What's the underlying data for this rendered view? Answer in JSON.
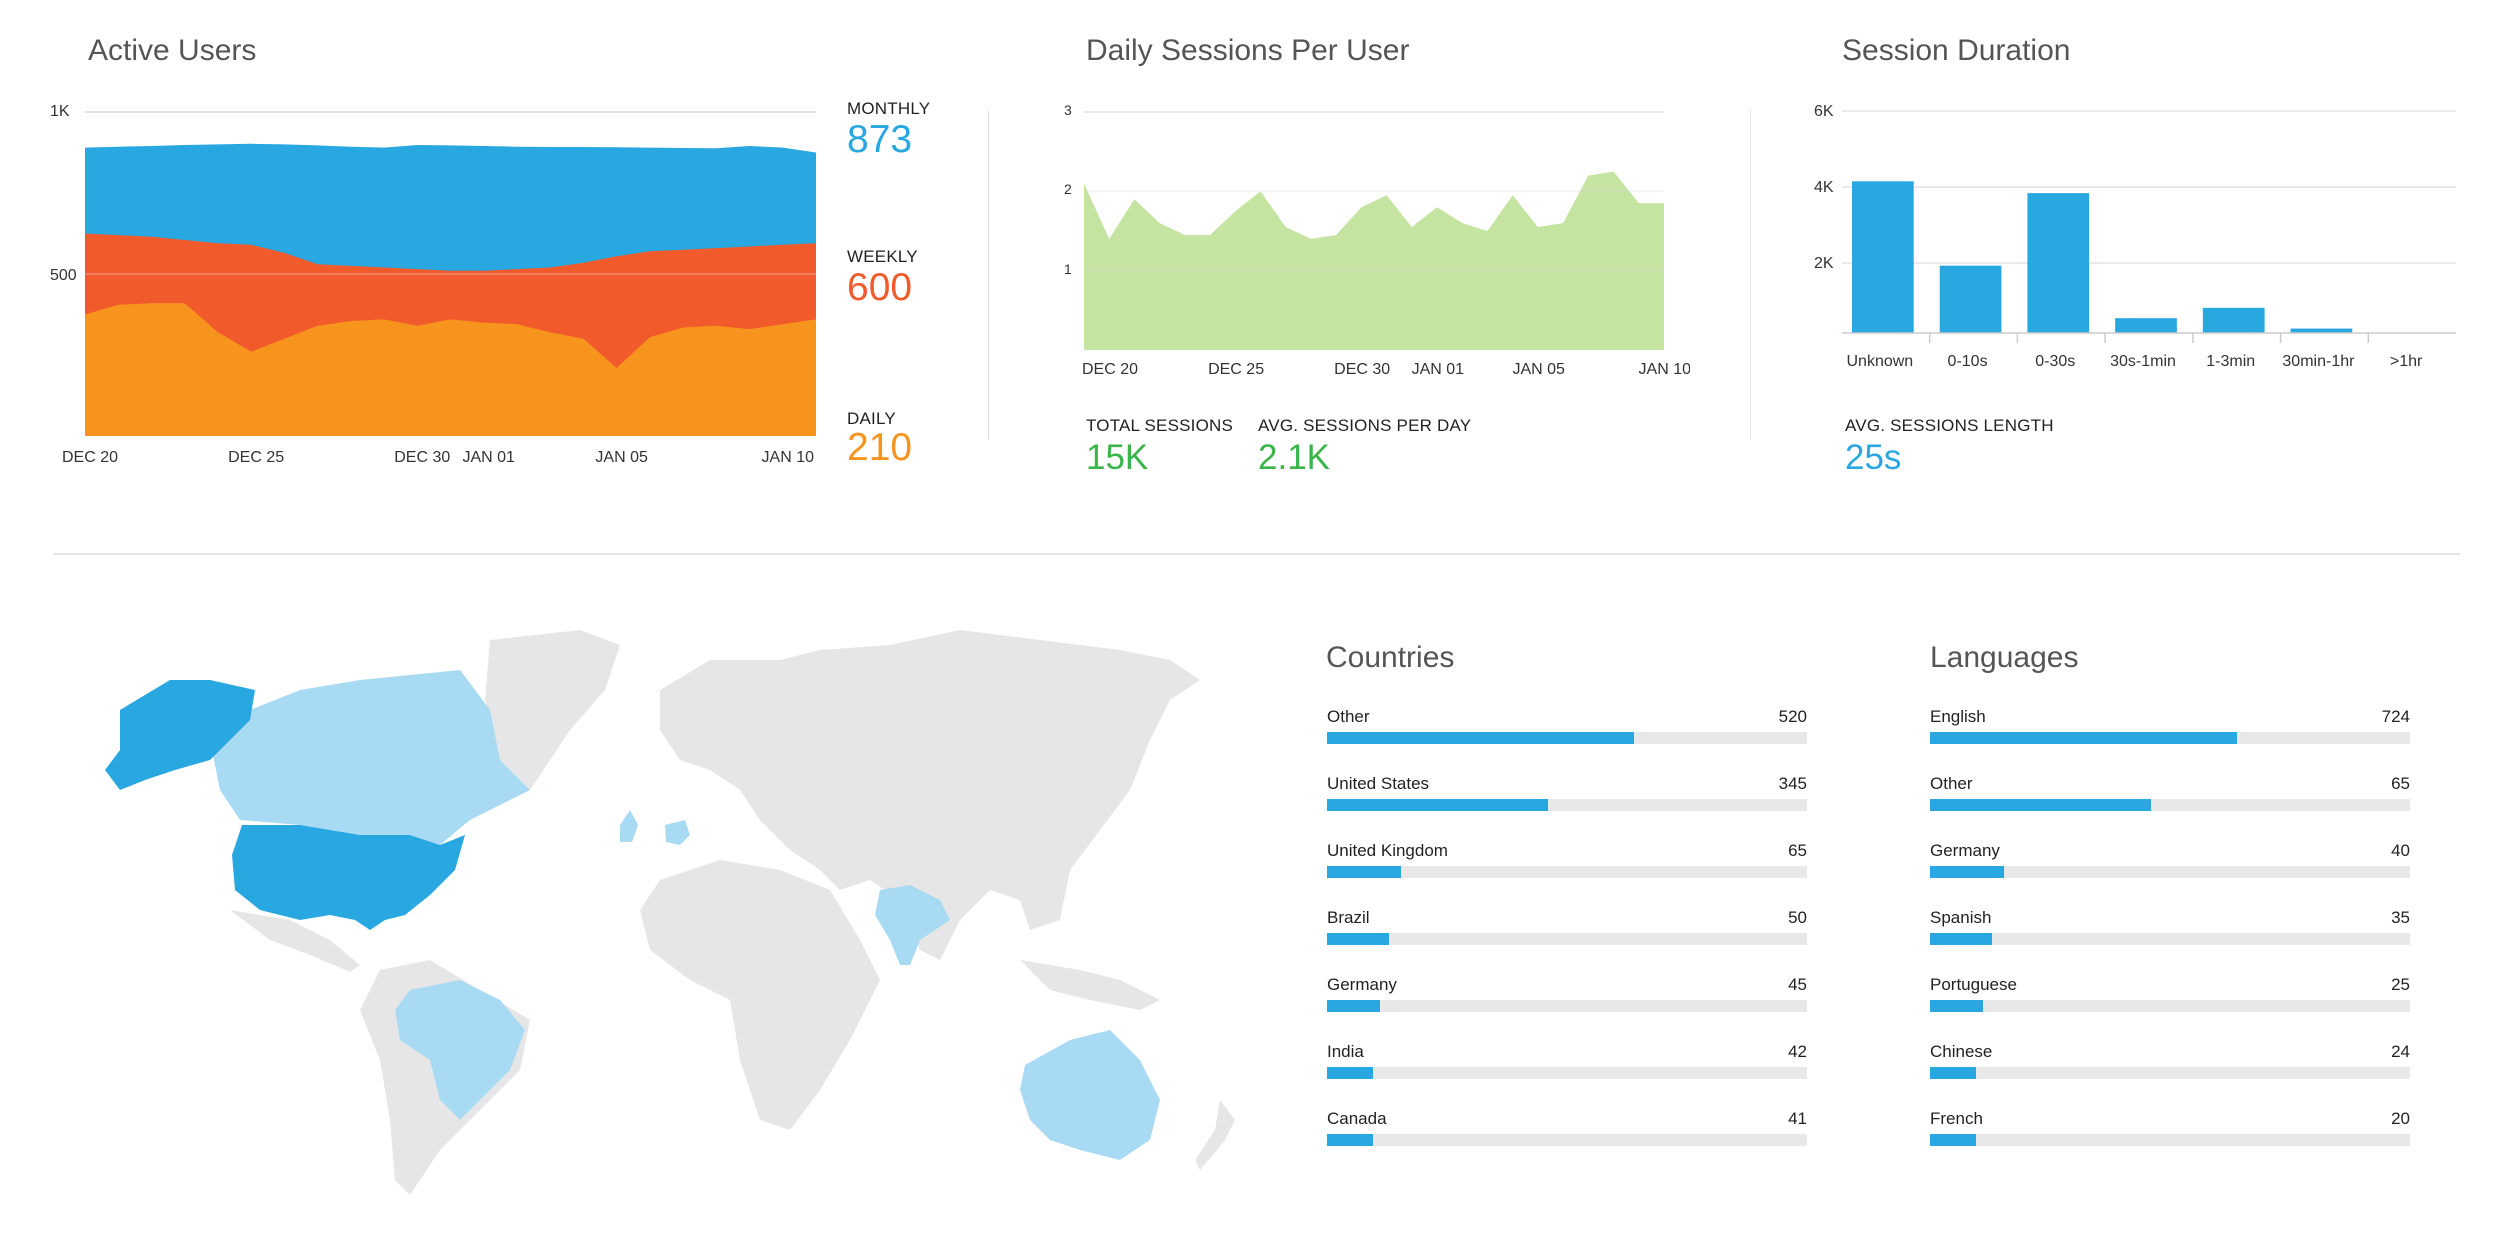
{
  "colors": {
    "accent": "#29a7e1",
    "monthly": "#29a7e1",
    "weekly": "#f15a2b",
    "daily": "#f7941e",
    "sessions_fill": "#c5e3a1",
    "green_text": "#39b54a",
    "map_base": "#e6e6e6",
    "map_light": "#a8dbf3",
    "map_dark": "#29a7e1"
  },
  "active_users": {
    "title": "Active Users",
    "monthly_label": "MONTHLY",
    "monthly_value": "873",
    "weekly_label": "WEEKLY",
    "weekly_value": "600",
    "daily_label": "DAILY",
    "daily_value": "210"
  },
  "daily_sessions": {
    "title": "Daily Sessions Per User",
    "total_label": "TOTAL SESSIONS",
    "total_value": "15K",
    "avg_label": "AVG. SESSIONS PER DAY",
    "avg_value": "2.1K"
  },
  "session_duration": {
    "title": "Session Duration",
    "avg_length_label": "AVG. SESSIONS LENGTH",
    "avg_length_value": "25s"
  },
  "countries": {
    "title": "Countries",
    "max": 520,
    "items": [
      {
        "name": "Other",
        "value": "520",
        "fraction": 0.64
      },
      {
        "name": "United States",
        "value": "345",
        "fraction": 0.46
      },
      {
        "name": "United Kingdom",
        "value": "65",
        "fraction": 0.155
      },
      {
        "name": "Brazil",
        "value": "50",
        "fraction": 0.13
      },
      {
        "name": "Germany",
        "value": "45",
        "fraction": 0.11
      },
      {
        "name": "India",
        "value": "42",
        "fraction": 0.095
      },
      {
        "name": "Canada",
        "value": "41",
        "fraction": 0.095
      }
    ]
  },
  "languages": {
    "title": "Languages",
    "items": [
      {
        "name": "English",
        "value": "724",
        "fraction": 0.64
      },
      {
        "name": "Other",
        "value": "65",
        "fraction": 0.46
      },
      {
        "name": "Germany",
        "value": "40",
        "fraction": 0.155
      },
      {
        "name": "Spanish",
        "value": "35",
        "fraction": 0.13
      },
      {
        "name": "Portuguese",
        "value": "25",
        "fraction": 0.11
      },
      {
        "name": "Chinese",
        "value": "24",
        "fraction": 0.095
      },
      {
        "name": "French",
        "value": "20",
        "fraction": 0.095
      }
    ]
  },
  "map": {
    "highlighted_dark": [
      "Alaska",
      "United States"
    ],
    "highlighted_light": [
      "Canada",
      "Brazil",
      "India",
      "Australia",
      "United Kingdom",
      "Germany"
    ]
  },
  "chart_data": [
    {
      "type": "area",
      "title": "Active Users",
      "x": [
        "DEC 20",
        "DEC 21",
        "DEC 22",
        "DEC 23",
        "DEC 24",
        "DEC 25",
        "DEC 26",
        "DEC 27",
        "DEC 28",
        "DEC 29",
        "DEC 30",
        "DEC 31",
        "JAN 01",
        "JAN 02",
        "JAN 03",
        "JAN 04",
        "JAN 05",
        "JAN 06",
        "JAN 07",
        "JAN 08",
        "JAN 09",
        "JAN 10",
        "JAN 11"
      ],
      "xtick_labels": [
        "DEC 20",
        "DEC 25",
        "DEC 30",
        "JAN 01",
        "JAN 05",
        "JAN 10"
      ],
      "ytick_labels": [
        "1K",
        "500"
      ],
      "ylim": [
        0,
        1000
      ],
      "series": [
        {
          "name": "MONTHLY",
          "values": [
            890,
            893,
            895,
            898,
            900,
            902,
            900,
            897,
            893,
            890,
            898,
            897,
            895,
            893,
            892,
            892,
            891,
            890,
            889,
            888,
            895,
            890,
            875
          ]
        },
        {
          "name": "WEEKLY",
          "values": [
            625,
            620,
            615,
            605,
            595,
            590,
            565,
            530,
            525,
            520,
            515,
            510,
            510,
            515,
            520,
            535,
            555,
            570,
            575,
            580,
            585,
            590,
            595
          ]
        },
        {
          "name": "DAILY",
          "values": [
            375,
            405,
            410,
            410,
            320,
            260,
            300,
            340,
            355,
            360,
            340,
            360,
            350,
            345,
            320,
            300,
            210,
            305,
            335,
            340,
            330,
            345,
            360
          ]
        }
      ]
    },
    {
      "type": "area",
      "title": "Daily Sessions Per User",
      "x": [
        "DEC 20",
        "DEC 21",
        "DEC 22",
        "DEC 23",
        "DEC 24",
        "DEC 25",
        "DEC 26",
        "DEC 27",
        "DEC 28",
        "DEC 29",
        "DEC 30",
        "DEC 31",
        "JAN 01",
        "JAN 02",
        "JAN 03",
        "JAN 04",
        "JAN 05",
        "JAN 06",
        "JAN 07",
        "JAN 08",
        "JAN 09",
        "JAN 10",
        "JAN 11",
        "JAN 12"
      ],
      "xtick_labels": [
        "DEC 20",
        "DEC 25",
        "DEC 30",
        "JAN 01",
        "JAN 05",
        "JAN 10"
      ],
      "ytick_labels": [
        "3",
        "2",
        "1"
      ],
      "ylim": [
        0,
        3
      ],
      "series": [
        {
          "name": "",
          "values": [
            2.1,
            1.4,
            1.9,
            1.6,
            1.45,
            1.45,
            1.75,
            2.0,
            1.55,
            1.4,
            1.45,
            1.8,
            1.95,
            1.55,
            1.8,
            1.6,
            1.5,
            1.95,
            1.55,
            1.6,
            2.2,
            2.25,
            1.85,
            1.85
          ]
        }
      ]
    },
    {
      "type": "bar",
      "title": "Session Duration",
      "categories": [
        "Unknown",
        "0-10s",
        "0-30s",
        "30s-1min",
        "1-3min",
        "30min-1hr",
        ">1hr"
      ],
      "values": [
        4100,
        1820,
        3780,
        400,
        680,
        120,
        0
      ],
      "ytick_labels": [
        "6K",
        "4K",
        "2K"
      ],
      "ylim": [
        0,
        6000
      ]
    }
  ]
}
